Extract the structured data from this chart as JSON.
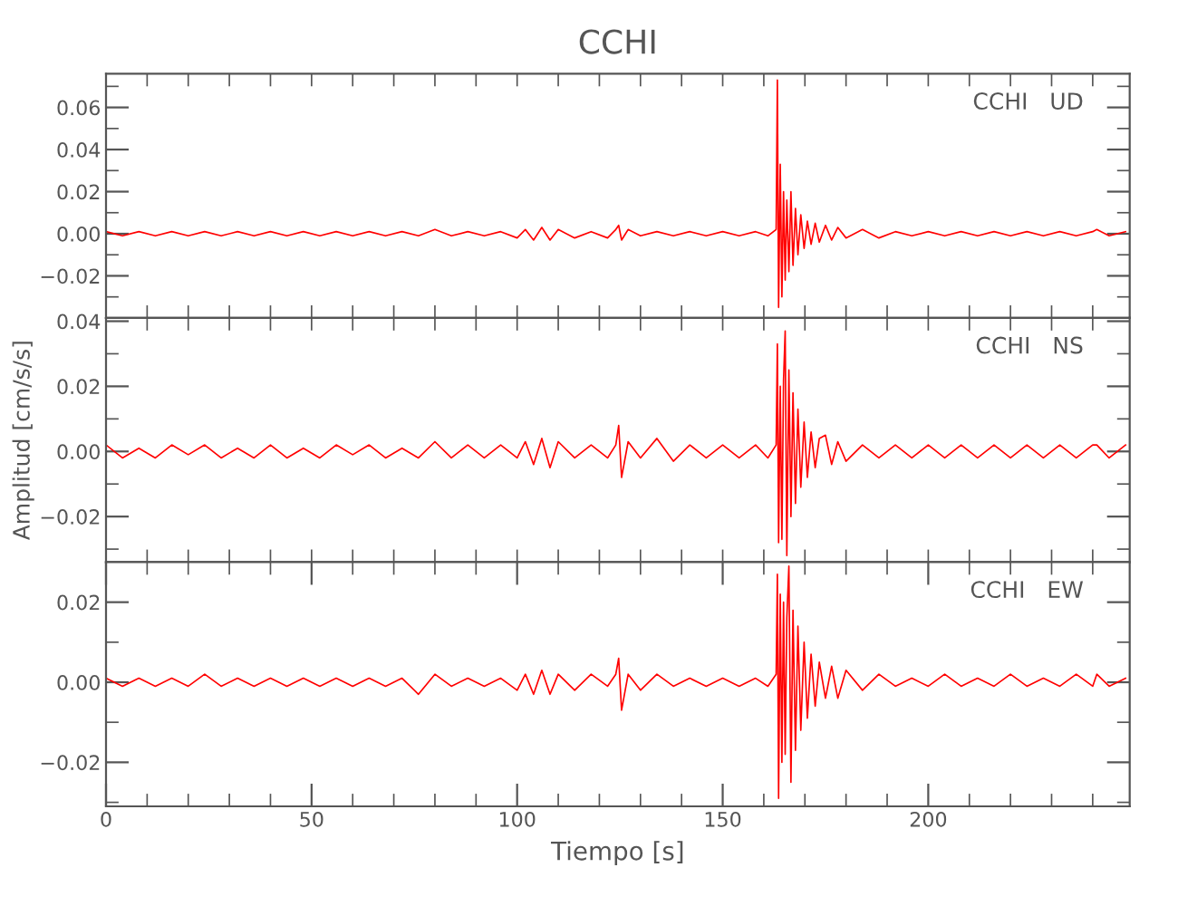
{
  "chart_data": [
    {
      "type": "line",
      "title": "CCHI",
      "annotations": [
        "CCHI   UD"
      ],
      "tick_labels": "y",
      "line_style": "solid",
      "x": [
        0,
        4,
        8,
        12,
        16,
        20,
        24,
        28,
        32,
        36,
        40,
        44,
        48,
        52,
        56,
        60,
        64,
        68,
        72,
        76,
        80,
        84,
        88,
        92,
        96,
        100,
        102,
        104,
        106,
        108,
        110,
        114,
        118,
        122,
        124,
        124.7,
        125.4,
        127,
        130,
        134,
        138,
        142,
        146,
        150,
        154,
        158,
        161,
        163,
        163.3,
        163.6,
        164,
        164.4,
        164.8,
        165.2,
        165.6,
        166.1,
        166.6,
        167.1,
        167.7,
        168.3,
        169,
        169.8,
        170.6,
        171.5,
        172.5,
        173.5,
        175,
        176.5,
        178,
        180,
        184,
        188,
        192,
        196,
        200,
        204,
        208,
        212,
        216,
        220,
        224,
        228,
        232,
        236,
        240,
        241,
        244,
        248
      ],
      "series": [
        {
          "color": "#ff0000",
          "values": [
            0.001,
            -0.001,
            0.001,
            -0.001,
            0.001,
            -0.001,
            0.001,
            -0.001,
            0.001,
            -0.001,
            0.001,
            -0.001,
            0.001,
            -0.001,
            0.001,
            -0.001,
            0.001,
            -0.001,
            0.001,
            -0.001,
            0.002,
            -0.001,
            0.001,
            -0.001,
            0.001,
            -0.002,
            0.002,
            -0.003,
            0.003,
            -0.003,
            0.002,
            -0.002,
            0.001,
            -0.002,
            0.002,
            0.004,
            -0.003,
            0.002,
            -0.001,
            0.001,
            -0.001,
            0.001,
            -0.001,
            0.001,
            -0.001,
            0.001,
            -0.001,
            0.002,
            0.073,
            -0.035,
            0.033,
            -0.03,
            0.02,
            -0.022,
            0.016,
            -0.018,
            0.02,
            -0.015,
            0.012,
            -0.01,
            0.009,
            -0.007,
            0.006,
            -0.005,
            0.005,
            -0.004,
            0.004,
            -0.003,
            0.003,
            -0.002,
            0.002,
            -0.002,
            0.001,
            -0.001,
            0.001,
            -0.001,
            0.001,
            -0.001,
            0.001,
            -0.001,
            0.001,
            -0.001,
            0.001,
            -0.001,
            0.001,
            0.002,
            -0.001,
            0.001
          ]
        }
      ],
      "xlim": [
        0,
        249
      ],
      "ylim": [
        -0.04,
        0.076
      ],
      "xticks": [
        {
          "value": 0,
          "label": null
        },
        {
          "value": 10,
          "label": null
        },
        {
          "value": 20,
          "label": null
        },
        {
          "value": 30,
          "label": null
        },
        {
          "value": 40,
          "label": null
        },
        {
          "value": 50,
          "label": null
        },
        {
          "value": 60,
          "label": null
        },
        {
          "value": 70,
          "label": null
        },
        {
          "value": 80,
          "label": null
        },
        {
          "value": 90,
          "label": null
        },
        {
          "value": 100,
          "label": null
        },
        {
          "value": 110,
          "label": null
        },
        {
          "value": 120,
          "label": null
        },
        {
          "value": 130,
          "label": null
        },
        {
          "value": 140,
          "label": null
        },
        {
          "value": 150,
          "label": null
        },
        {
          "value": 160,
          "label": null
        },
        {
          "value": 170,
          "label": null
        },
        {
          "value": 180,
          "label": null
        },
        {
          "value": 190,
          "label": null
        },
        {
          "value": 200,
          "label": null
        },
        {
          "value": 210,
          "label": null
        },
        {
          "value": 220,
          "label": null
        },
        {
          "value": 230,
          "label": null
        },
        {
          "value": 240,
          "label": null
        }
      ],
      "yticks": [
        {
          "value": -0.03,
          "label": null
        },
        {
          "value": -0.02,
          "label": "−0.02"
        },
        {
          "value": -0.01,
          "label": null
        },
        {
          "value": 0,
          "label": "0.00"
        },
        {
          "value": 0.01,
          "label": null
        },
        {
          "value": 0.02,
          "label": "0.02"
        },
        {
          "value": 0.03,
          "label": null
        },
        {
          "value": 0.04,
          "label": "0.04"
        },
        {
          "value": 0.05,
          "label": null
        },
        {
          "value": 0.06,
          "label": "0.06"
        },
        {
          "value": 0.07,
          "label": null
        }
      ]
    },
    {
      "type": "line",
      "ylabel": "Amplitud [cm/s/s]",
      "annotations": [
        "CCHI   NS"
      ],
      "tick_labels": "y",
      "line_style": "solid",
      "x": [
        0,
        4,
        8,
        12,
        16,
        20,
        24,
        28,
        32,
        36,
        40,
        44,
        48,
        52,
        56,
        60,
        64,
        68,
        72,
        76,
        80,
        84,
        88,
        92,
        96,
        100,
        102,
        104,
        106,
        108,
        110,
        114,
        118,
        122,
        124,
        124.7,
        125.4,
        127,
        130,
        134,
        138,
        142,
        146,
        150,
        154,
        158,
        161,
        163,
        163.3,
        163.6,
        164,
        164.4,
        164.8,
        165.2,
        165.6,
        166.1,
        166.6,
        167.1,
        167.7,
        168.3,
        169,
        169.8,
        170.6,
        171.5,
        172.5,
        173.5,
        175,
        176.5,
        178,
        180,
        184,
        188,
        192,
        196,
        200,
        204,
        208,
        212,
        216,
        220,
        224,
        228,
        232,
        236,
        240,
        241,
        244,
        248
      ],
      "series": [
        {
          "color": "#ff0000",
          "values": [
            0.002,
            -0.002,
            0.001,
            -0.002,
            0.002,
            -0.001,
            0.002,
            -0.002,
            0.001,
            -0.002,
            0.002,
            -0.002,
            0.001,
            -0.002,
            0.002,
            -0.001,
            0.002,
            -0.002,
            0.001,
            -0.002,
            0.003,
            -0.002,
            0.002,
            -0.002,
            0.002,
            -0.002,
            0.003,
            -0.004,
            0.004,
            -0.005,
            0.003,
            -0.002,
            0.002,
            -0.002,
            0.002,
            0.008,
            -0.008,
            0.003,
            -0.002,
            0.004,
            -0.003,
            0.002,
            -0.002,
            0.002,
            -0.002,
            0.002,
            -0.002,
            0.002,
            0.033,
            -0.028,
            0.02,
            -0.027,
            0.022,
            0.037,
            -0.032,
            0.025,
            -0.02,
            0.018,
            -0.016,
            0.013,
            -0.011,
            0.009,
            -0.008,
            0.006,
            -0.005,
            0.004,
            0.005,
            -0.004,
            0.003,
            -0.003,
            0.002,
            -0.002,
            0.002,
            -0.002,
            0.002,
            -0.002,
            0.002,
            -0.002,
            0.002,
            -0.002,
            0.002,
            -0.002,
            0.002,
            -0.002,
            0.002,
            0.002,
            -0.002,
            0.002
          ]
        }
      ],
      "xlim": [
        0,
        249
      ],
      "ylim": [
        -0.034,
        0.041
      ],
      "xticks": [
        {
          "value": 0,
          "label": null
        },
        {
          "value": 10,
          "label": null
        },
        {
          "value": 20,
          "label": null
        },
        {
          "value": 30,
          "label": null
        },
        {
          "value": 40,
          "label": null
        },
        {
          "value": 50,
          "label": null
        },
        {
          "value": 60,
          "label": null
        },
        {
          "value": 70,
          "label": null
        },
        {
          "value": 80,
          "label": null
        },
        {
          "value": 90,
          "label": null
        },
        {
          "value": 100,
          "label": null
        },
        {
          "value": 110,
          "label": null
        },
        {
          "value": 120,
          "label": null
        },
        {
          "value": 130,
          "label": null
        },
        {
          "value": 140,
          "label": null
        },
        {
          "value": 150,
          "label": null
        },
        {
          "value": 160,
          "label": null
        },
        {
          "value": 170,
          "label": null
        },
        {
          "value": 180,
          "label": null
        },
        {
          "value": 190,
          "label": null
        },
        {
          "value": 200,
          "label": null
        },
        {
          "value": 210,
          "label": null
        },
        {
          "value": 220,
          "label": null
        },
        {
          "value": 230,
          "label": null
        },
        {
          "value": 240,
          "label": null
        }
      ],
      "yticks": [
        {
          "value": -0.03,
          "label": null
        },
        {
          "value": -0.02,
          "label": "−0.02"
        },
        {
          "value": -0.01,
          "label": null
        },
        {
          "value": 0,
          "label": "0.00"
        },
        {
          "value": 0.01,
          "label": null
        },
        {
          "value": 0.02,
          "label": "0.02"
        },
        {
          "value": 0.03,
          "label": null
        },
        {
          "value": 0.04,
          "label": "0.04"
        }
      ]
    },
    {
      "type": "line",
      "xlabel": "Tiempo [s]",
      "annotations": [
        "CCHI   EW"
      ],
      "line_style": "solid",
      "x": [
        0,
        4,
        8,
        12,
        16,
        20,
        24,
        28,
        32,
        36,
        40,
        44,
        48,
        52,
        56,
        60,
        64,
        68,
        72,
        76,
        80,
        84,
        88,
        92,
        96,
        100,
        102,
        104,
        106,
        108,
        110,
        114,
        118,
        122,
        124,
        124.7,
        125.4,
        127,
        130,
        134,
        138,
        142,
        146,
        150,
        154,
        158,
        161,
        163,
        163.3,
        163.6,
        164,
        164.4,
        164.8,
        165.2,
        165.6,
        166.1,
        166.6,
        167.1,
        167.7,
        168.3,
        169,
        169.8,
        170.6,
        171.5,
        172.5,
        173.5,
        175,
        176.5,
        178,
        180,
        184,
        188,
        192,
        196,
        200,
        204,
        208,
        212,
        216,
        220,
        224,
        228,
        232,
        236,
        240,
        241,
        244,
        248
      ],
      "series": [
        {
          "color": "#ff0000",
          "values": [
            0.001,
            -0.001,
            0.001,
            -0.001,
            0.001,
            -0.001,
            0.002,
            -0.001,
            0.001,
            -0.001,
            0.001,
            -0.001,
            0.001,
            -0.001,
            0.001,
            -0.001,
            0.001,
            -0.001,
            0.001,
            -0.003,
            0.002,
            -0.001,
            0.001,
            -0.001,
            0.001,
            -0.002,
            0.002,
            -0.003,
            0.003,
            -0.003,
            0.002,
            -0.002,
            0.002,
            -0.001,
            0.002,
            0.006,
            -0.007,
            0.002,
            -0.002,
            0.002,
            -0.001,
            0.001,
            -0.001,
            0.001,
            -0.001,
            0.001,
            -0.001,
            0.002,
            0.027,
            -0.029,
            0.022,
            -0.02,
            0.02,
            -0.018,
            0.016,
            0.029,
            -0.025,
            0.018,
            -0.017,
            0.014,
            -0.012,
            0.01,
            -0.009,
            0.007,
            -0.006,
            0.005,
            -0.004,
            0.004,
            -0.004,
            0.003,
            -0.002,
            0.002,
            -0.001,
            0.001,
            -0.001,
            0.002,
            -0.001,
            0.001,
            -0.001,
            0.002,
            -0.001,
            0.001,
            -0.001,
            0.002,
            -0.001,
            0.002,
            -0.001,
            0.001
          ]
        }
      ],
      "xlim": [
        0,
        249
      ],
      "ylim": [
        -0.031,
        0.03
      ],
      "xticks": [
        {
          "value": 0,
          "label": "0"
        },
        {
          "value": 10,
          "label": null
        },
        {
          "value": 20,
          "label": null
        },
        {
          "value": 30,
          "label": null
        },
        {
          "value": 40,
          "label": null
        },
        {
          "value": 50,
          "label": "50"
        },
        {
          "value": 60,
          "label": null
        },
        {
          "value": 70,
          "label": null
        },
        {
          "value": 80,
          "label": null
        },
        {
          "value": 90,
          "label": null
        },
        {
          "value": 100,
          "label": "100"
        },
        {
          "value": 110,
          "label": null
        },
        {
          "value": 120,
          "label": null
        },
        {
          "value": 130,
          "label": null
        },
        {
          "value": 140,
          "label": null
        },
        {
          "value": 150,
          "label": "150"
        },
        {
          "value": 160,
          "label": null
        },
        {
          "value": 170,
          "label": null
        },
        {
          "value": 180,
          "label": null
        },
        {
          "value": 190,
          "label": null
        },
        {
          "value": 200,
          "label": "200"
        },
        {
          "value": 210,
          "label": null
        },
        {
          "value": 220,
          "label": null
        },
        {
          "value": 230,
          "label": null
        },
        {
          "value": 240,
          "label": null
        }
      ],
      "yticks": [
        {
          "value": -0.03,
          "label": null
        },
        {
          "value": -0.02,
          "label": "−0.02"
        },
        {
          "value": -0.01,
          "label": null
        },
        {
          "value": 0,
          "label": "0.00"
        },
        {
          "value": 0.01,
          "label": null
        },
        {
          "value": 0.02,
          "label": "0.02"
        }
      ]
    }
  ]
}
